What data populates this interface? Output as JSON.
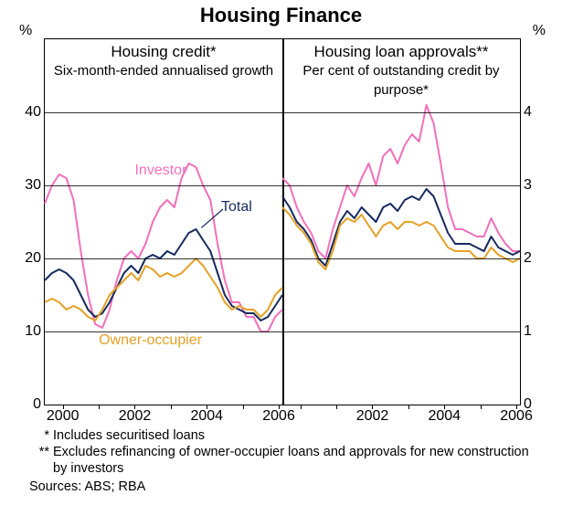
{
  "title": "Housing Finance",
  "left_panel": {
    "title": "Housing credit*",
    "subtitle": "Six-month-ended annualised growth",
    "ymin": 0,
    "ymax": 50,
    "yticks": [
      0,
      10,
      20,
      30,
      40
    ],
    "xmin": 1999.5,
    "xmax": 2006.1,
    "xticks": [
      2000,
      2002,
      2004,
      2006
    ],
    "series": {
      "investor": {
        "color": "#f270bb",
        "label": "Investor",
        "label_x": 2002.0,
        "label_y": 32,
        "label_color": "#f270bb",
        "points": [
          [
            1999.5,
            27.5
          ],
          [
            1999.7,
            30
          ],
          [
            1999.9,
            31.5
          ],
          [
            2000.1,
            31
          ],
          [
            2000.3,
            28
          ],
          [
            2000.5,
            21
          ],
          [
            2000.7,
            15
          ],
          [
            2000.9,
            11
          ],
          [
            2001.1,
            10.5
          ],
          [
            2001.3,
            13
          ],
          [
            2001.5,
            17
          ],
          [
            2001.7,
            20
          ],
          [
            2001.9,
            21
          ],
          [
            2002.1,
            20
          ],
          [
            2002.3,
            22
          ],
          [
            2002.5,
            25
          ],
          [
            2002.7,
            27
          ],
          [
            2002.9,
            28
          ],
          [
            2003.1,
            27
          ],
          [
            2003.3,
            31
          ],
          [
            2003.5,
            33
          ],
          [
            2003.7,
            32.5
          ],
          [
            2003.9,
            30
          ],
          [
            2004.1,
            28
          ],
          [
            2004.3,
            22
          ],
          [
            2004.5,
            17
          ],
          [
            2004.7,
            14
          ],
          [
            2004.9,
            14
          ],
          [
            2005.1,
            12
          ],
          [
            2005.3,
            12
          ],
          [
            2005.5,
            10
          ],
          [
            2005.7,
            10
          ],
          [
            2005.9,
            12
          ],
          [
            2006.1,
            13
          ]
        ]
      },
      "total": {
        "color": "#172a5f",
        "label": "Total",
        "label_x": 2004.4,
        "label_y": 27,
        "label_color": "#172a5f",
        "arrow_to": [
          2003.85,
          24.2
        ],
        "points": [
          [
            1999.5,
            17
          ],
          [
            1999.7,
            18
          ],
          [
            1999.9,
            18.5
          ],
          [
            2000.1,
            18
          ],
          [
            2000.3,
            17
          ],
          [
            2000.5,
            15
          ],
          [
            2000.7,
            13
          ],
          [
            2000.9,
            12
          ],
          [
            2001.1,
            12.5
          ],
          [
            2001.3,
            14
          ],
          [
            2001.5,
            16
          ],
          [
            2001.7,
            18
          ],
          [
            2001.9,
            19
          ],
          [
            2002.1,
            18
          ],
          [
            2002.3,
            20
          ],
          [
            2002.5,
            20.5
          ],
          [
            2002.7,
            20
          ],
          [
            2002.9,
            21
          ],
          [
            2003.1,
            20.5
          ],
          [
            2003.3,
            22
          ],
          [
            2003.5,
            23.5
          ],
          [
            2003.7,
            24
          ],
          [
            2003.9,
            22.5
          ],
          [
            2004.1,
            21
          ],
          [
            2004.3,
            18
          ],
          [
            2004.5,
            15
          ],
          [
            2004.7,
            13.5
          ],
          [
            2004.9,
            13
          ],
          [
            2005.1,
            12.5
          ],
          [
            2005.3,
            12.5
          ],
          [
            2005.5,
            11.5
          ],
          [
            2005.7,
            12
          ],
          [
            2005.9,
            13.5
          ],
          [
            2006.1,
            15
          ]
        ]
      },
      "owner": {
        "color": "#e5a126",
        "label": "Owner-occupier",
        "label_x": 2001.0,
        "label_y": 8.7,
        "label_color": "#e5a126",
        "points": [
          [
            1999.5,
            14
          ],
          [
            1999.7,
            14.5
          ],
          [
            1999.9,
            14
          ],
          [
            2000.1,
            13
          ],
          [
            2000.3,
            13.5
          ],
          [
            2000.5,
            13
          ],
          [
            2000.7,
            12
          ],
          [
            2000.9,
            11.5
          ],
          [
            2001.1,
            13
          ],
          [
            2001.3,
            15
          ],
          [
            2001.5,
            16
          ],
          [
            2001.7,
            17
          ],
          [
            2001.9,
            18
          ],
          [
            2002.1,
            17
          ],
          [
            2002.3,
            19
          ],
          [
            2002.5,
            18.5
          ],
          [
            2002.7,
            17.5
          ],
          [
            2002.9,
            18
          ],
          [
            2003.1,
            17.5
          ],
          [
            2003.3,
            18
          ],
          [
            2003.5,
            19
          ],
          [
            2003.7,
            20
          ],
          [
            2003.9,
            19
          ],
          [
            2004.1,
            17.5
          ],
          [
            2004.3,
            16
          ],
          [
            2004.5,
            14
          ],
          [
            2004.7,
            13
          ],
          [
            2004.9,
            13.5
          ],
          [
            2005.1,
            13
          ],
          [
            2005.3,
            13
          ],
          [
            2005.5,
            12
          ],
          [
            2005.7,
            13
          ],
          [
            2005.9,
            15
          ],
          [
            2006.1,
            16
          ]
        ]
      }
    }
  },
  "right_panel": {
    "title": "Housing loan approvals**",
    "subtitle": "Per cent of outstanding credit by purpose*",
    "ymin": 0,
    "ymax": 5,
    "yticks": [
      0,
      1,
      2,
      3,
      4
    ],
    "xmin": 1999.5,
    "xmax": 2006.1,
    "xticks": [
      2002,
      2004,
      2006
    ],
    "series": {
      "investor": {
        "color": "#f270bb",
        "points": [
          [
            1999.5,
            3.1
          ],
          [
            1999.7,
            3.0
          ],
          [
            1999.9,
            2.7
          ],
          [
            2000.1,
            2.5
          ],
          [
            2000.3,
            2.35
          ],
          [
            2000.5,
            2.1
          ],
          [
            2000.7,
            2.0
          ],
          [
            2000.9,
            2.4
          ],
          [
            2001.1,
            2.7
          ],
          [
            2001.3,
            3.0
          ],
          [
            2001.5,
            2.85
          ],
          [
            2001.7,
            3.1
          ],
          [
            2001.9,
            3.3
          ],
          [
            2002.1,
            3.0
          ],
          [
            2002.3,
            3.4
          ],
          [
            2002.5,
            3.5
          ],
          [
            2002.7,
            3.3
          ],
          [
            2002.9,
            3.55
          ],
          [
            2003.1,
            3.7
          ],
          [
            2003.3,
            3.6
          ],
          [
            2003.5,
            4.1
          ],
          [
            2003.7,
            3.85
          ],
          [
            2003.9,
            3.3
          ],
          [
            2004.1,
            2.7
          ],
          [
            2004.3,
            2.4
          ],
          [
            2004.5,
            2.4
          ],
          [
            2004.7,
            2.35
          ],
          [
            2004.9,
            2.3
          ],
          [
            2005.1,
            2.3
          ],
          [
            2005.3,
            2.55
          ],
          [
            2005.5,
            2.35
          ],
          [
            2005.7,
            2.2
          ],
          [
            2005.9,
            2.1
          ],
          [
            2006.1,
            2.1
          ]
        ]
      },
      "total": {
        "color": "#172a5f",
        "points": [
          [
            1999.5,
            2.85
          ],
          [
            1999.7,
            2.7
          ],
          [
            1999.9,
            2.5
          ],
          [
            2000.1,
            2.4
          ],
          [
            2000.3,
            2.25
          ],
          [
            2000.5,
            2.0
          ],
          [
            2000.7,
            1.9
          ],
          [
            2000.9,
            2.2
          ],
          [
            2001.1,
            2.5
          ],
          [
            2001.3,
            2.65
          ],
          [
            2001.5,
            2.55
          ],
          [
            2001.7,
            2.7
          ],
          [
            2001.9,
            2.6
          ],
          [
            2002.1,
            2.5
          ],
          [
            2002.3,
            2.7
          ],
          [
            2002.5,
            2.75
          ],
          [
            2002.7,
            2.65
          ],
          [
            2002.9,
            2.8
          ],
          [
            2003.1,
            2.85
          ],
          [
            2003.3,
            2.8
          ],
          [
            2003.5,
            2.95
          ],
          [
            2003.7,
            2.85
          ],
          [
            2003.9,
            2.6
          ],
          [
            2004.1,
            2.35
          ],
          [
            2004.3,
            2.2
          ],
          [
            2004.5,
            2.2
          ],
          [
            2004.7,
            2.2
          ],
          [
            2004.9,
            2.15
          ],
          [
            2005.1,
            2.1
          ],
          [
            2005.3,
            2.3
          ],
          [
            2005.5,
            2.15
          ],
          [
            2005.7,
            2.1
          ],
          [
            2005.9,
            2.05
          ],
          [
            2006.1,
            2.1
          ]
        ]
      },
      "owner": {
        "color": "#e5a126",
        "points": [
          [
            1999.5,
            2.7
          ],
          [
            1999.7,
            2.6
          ],
          [
            1999.9,
            2.45
          ],
          [
            2000.1,
            2.35
          ],
          [
            2000.3,
            2.2
          ],
          [
            2000.5,
            1.95
          ],
          [
            2000.7,
            1.85
          ],
          [
            2000.9,
            2.1
          ],
          [
            2001.1,
            2.45
          ],
          [
            2001.3,
            2.55
          ],
          [
            2001.5,
            2.5
          ],
          [
            2001.7,
            2.6
          ],
          [
            2001.9,
            2.45
          ],
          [
            2002.1,
            2.3
          ],
          [
            2002.3,
            2.45
          ],
          [
            2002.5,
            2.5
          ],
          [
            2002.7,
            2.4
          ],
          [
            2002.9,
            2.5
          ],
          [
            2003.1,
            2.5
          ],
          [
            2003.3,
            2.45
          ],
          [
            2003.5,
            2.5
          ],
          [
            2003.7,
            2.45
          ],
          [
            2003.9,
            2.3
          ],
          [
            2004.1,
            2.15
          ],
          [
            2004.3,
            2.1
          ],
          [
            2004.5,
            2.1
          ],
          [
            2004.7,
            2.1
          ],
          [
            2004.9,
            2.0
          ],
          [
            2005.1,
            2.0
          ],
          [
            2005.3,
            2.15
          ],
          [
            2005.5,
            2.05
          ],
          [
            2005.7,
            2.0
          ],
          [
            2005.9,
            1.95
          ],
          [
            2006.1,
            2.0
          ]
        ]
      }
    }
  },
  "yaxis_unit": "%",
  "footnotes": [
    {
      "marker": "*",
      "text": "Includes securitised loans"
    },
    {
      "marker": "**",
      "text": "Excludes refinancing of owner-occupier loans and approvals for new construction by investors"
    }
  ],
  "sources": "Sources: ABS; RBA",
  "line_width": 2
}
